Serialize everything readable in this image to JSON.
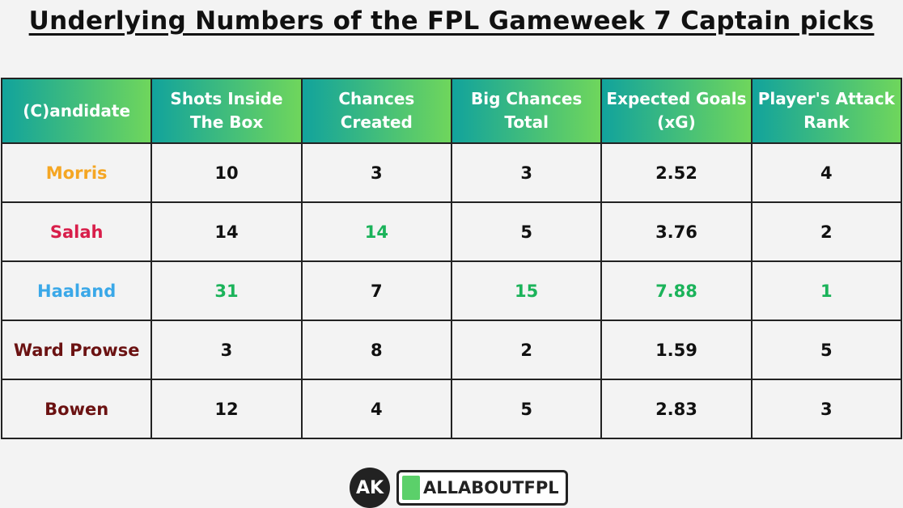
{
  "header": {
    "title": "Underlying Numbers of the FPL Gameweek 7 Captain picks"
  },
  "table": {
    "columns": [
      "(C)andidate",
      "Shots Inside The Box",
      "Chances Created",
      "Big Chances Total",
      "Expected Goals (xG)",
      "Player's Attack Rank"
    ],
    "rows": [
      [
        "Morris",
        10,
        3,
        3,
        2.52,
        4
      ],
      [
        "Salah",
        14,
        14,
        5,
        3.76,
        2
      ],
      [
        "Haaland",
        31,
        7,
        15,
        7.88,
        1
      ],
      [
        "Ward Prowse",
        3,
        8,
        2,
        1.59,
        5
      ],
      [
        "Bowen",
        12,
        4,
        5,
        2.83,
        3
      ]
    ]
  },
  "footer": {
    "badge": "AK",
    "brand": "ALLABOUTFPL"
  }
}
